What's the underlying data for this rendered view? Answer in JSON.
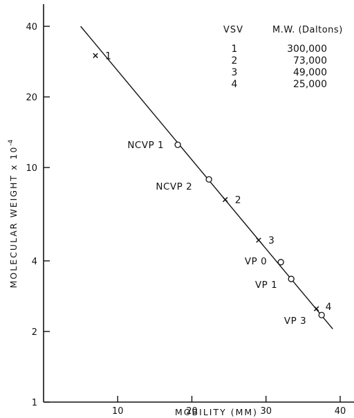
{
  "chart_data": {
    "type": "scatter",
    "xlabel": "MOBILITY (MM)",
    "ylabel": "MOLECULAR WEIGHT x 10",
    "ylabel_exponent": "-4",
    "xlim": [
      0,
      40
    ],
    "ylim": [
      1,
      50
    ],
    "yscale": "log",
    "x_ticks": [
      10,
      20,
      30,
      40
    ],
    "y_ticks": [
      1,
      2,
      4,
      10,
      20,
      40
    ],
    "x_tick_labels": [
      "10",
      "20",
      "30",
      "40"
    ],
    "y_tick_labels": [
      "1",
      "2",
      "4",
      "10",
      "20",
      "40"
    ],
    "grid": false,
    "fit_line": {
      "x": [
        5,
        39
      ],
      "y": [
        40,
        2.05
      ]
    },
    "series": [
      {
        "marker": "x",
        "points": [
          {
            "x": 7,
            "y": 30,
            "label": "1"
          },
          {
            "x": 24.5,
            "y": 7.3,
            "label": "2"
          },
          {
            "x": 29,
            "y": 4.9,
            "label": "3"
          },
          {
            "x": 36.8,
            "y": 2.5,
            "label": "4"
          }
        ]
      },
      {
        "marker": "o",
        "points": [
          {
            "x": 18.1,
            "y": 12.5,
            "label": "NCVP 1"
          },
          {
            "x": 22.3,
            "y": 8.9,
            "label": "NCVP 2"
          },
          {
            "x": 32,
            "y": 3.95,
            "label": "VP 0"
          },
          {
            "x": 33.4,
            "y": 3.35,
            "label": "VP 1"
          },
          {
            "x": 37.5,
            "y": 2.35,
            "label": "VP 3"
          }
        ]
      }
    ],
    "legend_table": {
      "headers": [
        "VSV",
        "M.W. (Daltons)"
      ],
      "rows": [
        [
          "1",
          "300,000"
        ],
        [
          "2",
          "73,000"
        ],
        [
          "3",
          "49,000"
        ],
        [
          "4",
          "25,000"
        ]
      ]
    }
  }
}
